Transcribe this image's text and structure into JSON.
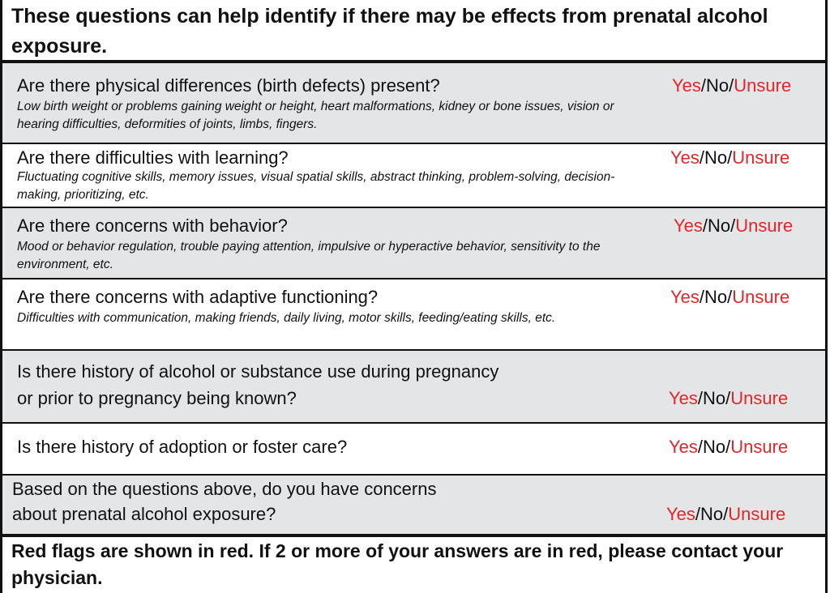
{
  "header": "These questions can help identify if there may be effects from prenatal alcohol exposure.",
  "answer": {
    "yes": "Yes",
    "no": "No",
    "unsure": "Unsure",
    "sep": "/"
  },
  "colors": {
    "red_flag": "#e2262a",
    "shade": "#e3e5e7",
    "border": "#111111"
  },
  "rows": [
    {
      "question": "Are there physical differences (birth defects) present?",
      "detail": "Low birth weight or problems gaining weight or height, heart malformations, kidney or bone issues, vision or hearing difficulties, deformities of joints, limbs, fingers."
    },
    {
      "question": "Are there difficulties with learning?",
      "detail": "Fluctuating cognitive skills, memory issues, visual spatial skills, abstract thinking, problem-solving, decision-making, prioritizing, etc."
    },
    {
      "question": "Are there concerns with behavior?",
      "detail": "Mood or behavior regulation, trouble paying attention, impulsive or hyperactive behavior, sensitivity to the environment, etc."
    },
    {
      "question": "Are there concerns with adaptive functioning?",
      "detail": "Difficulties with communication, making friends, daily living, motor skills, feeding/eating skills, etc."
    },
    {
      "question_line1": "Is there history of alcohol or substance use during pregnancy",
      "question_line2": "or prior to pregnancy being known?"
    },
    {
      "question": "Is there history of adoption or foster care?"
    },
    {
      "question_line1": "Based on the questions above, do you have concerns",
      "question_line2": "about prenatal alcohol exposure?"
    }
  ],
  "footer": "Red flags are shown in red. If 2 or more of your answers are in red, please contact your physician."
}
